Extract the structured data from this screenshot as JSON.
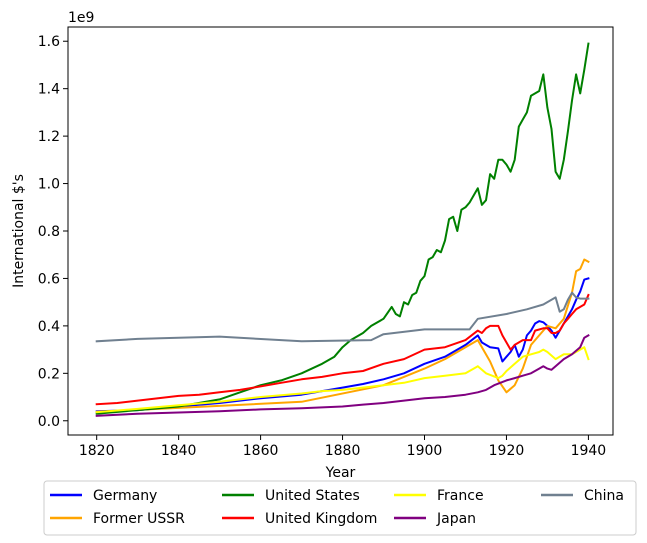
{
  "chart_data": {
    "type": "line",
    "xlabel": "Year",
    "ylabel": "International $'s",
    "offset_label": "1e9",
    "xlim": [
      1813,
      1946
    ],
    "ylim": [
      -0.06,
      1.66
    ],
    "scale_multiplier": 1000000000,
    "x_ticks": [
      1820,
      1840,
      1860,
      1880,
      1900,
      1920,
      1940
    ],
    "x_tick_labels": [
      "1820",
      "1840",
      "1860",
      "1880",
      "1900",
      "1920",
      "1940"
    ],
    "y_ticks": [
      0.0,
      0.2,
      0.4,
      0.6,
      0.8,
      1.0,
      1.2,
      1.4,
      1.6
    ],
    "y_tick_labels": [
      "0.0",
      "0.2",
      "0.4",
      "0.6",
      "0.8",
      "1.0",
      "1.2",
      "1.4",
      "1.6"
    ],
    "grid": false,
    "legend_position": "below-center",
    "series": [
      {
        "name": "Germany",
        "color": "#0000ff",
        "points": [
          [
            1820,
            0.04
          ],
          [
            1830,
            0.045
          ],
          [
            1840,
            0.06
          ],
          [
            1850,
            0.075
          ],
          [
            1860,
            0.095
          ],
          [
            1870,
            0.11
          ],
          [
            1875,
            0.125
          ],
          [
            1880,
            0.14
          ],
          [
            1885,
            0.155
          ],
          [
            1890,
            0.175
          ],
          [
            1895,
            0.2
          ],
          [
            1900,
            0.24
          ],
          [
            1905,
            0.27
          ],
          [
            1910,
            0.32
          ],
          [
            1913,
            0.36
          ],
          [
            1914,
            0.33
          ],
          [
            1916,
            0.31
          ],
          [
            1918,
            0.305
          ],
          [
            1919,
            0.25
          ],
          [
            1920,
            0.27
          ],
          [
            1921,
            0.29
          ],
          [
            1922,
            0.32
          ],
          [
            1923,
            0.27
          ],
          [
            1924,
            0.3
          ],
          [
            1925,
            0.36
          ],
          [
            1926,
            0.38
          ],
          [
            1927,
            0.41
          ],
          [
            1928,
            0.42
          ],
          [
            1929,
            0.415
          ],
          [
            1930,
            0.4
          ],
          [
            1931,
            0.38
          ],
          [
            1932,
            0.35
          ],
          [
            1933,
            0.38
          ],
          [
            1934,
            0.41
          ],
          [
            1935,
            0.44
          ],
          [
            1936,
            0.47
          ],
          [
            1937,
            0.51
          ],
          [
            1938,
            0.545
          ],
          [
            1939,
            0.595
          ],
          [
            1940,
            0.6
          ]
        ]
      },
      {
        "name": "Former USSR",
        "color": "#ffa500",
        "points": [
          [
            1820,
            0.038
          ],
          [
            1870,
            0.08
          ],
          [
            1890,
            0.15
          ],
          [
            1900,
            0.22
          ],
          [
            1905,
            0.26
          ],
          [
            1910,
            0.31
          ],
          [
            1913,
            0.34
          ],
          [
            1916,
            0.25
          ],
          [
            1918,
            0.17
          ],
          [
            1920,
            0.12
          ],
          [
            1922,
            0.15
          ],
          [
            1924,
            0.22
          ],
          [
            1926,
            0.32
          ],
          [
            1928,
            0.36
          ],
          [
            1930,
            0.4
          ],
          [
            1932,
            0.39
          ],
          [
            1934,
            0.43
          ],
          [
            1936,
            0.54
          ],
          [
            1937,
            0.63
          ],
          [
            1938,
            0.64
          ],
          [
            1939,
            0.68
          ],
          [
            1940,
            0.67
          ]
        ]
      },
      {
        "name": "United States",
        "color": "#008000",
        "points": [
          [
            1820,
            0.03
          ],
          [
            1830,
            0.045
          ],
          [
            1840,
            0.06
          ],
          [
            1850,
            0.09
          ],
          [
            1855,
            0.12
          ],
          [
            1860,
            0.15
          ],
          [
            1865,
            0.17
          ],
          [
            1870,
            0.2
          ],
          [
            1875,
            0.24
          ],
          [
            1878,
            0.27
          ],
          [
            1880,
            0.31
          ],
          [
            1882,
            0.34
          ],
          [
            1885,
            0.37
          ],
          [
            1887,
            0.4
          ],
          [
            1890,
            0.43
          ],
          [
            1892,
            0.48
          ],
          [
            1893,
            0.45
          ],
          [
            1894,
            0.44
          ],
          [
            1895,
            0.5
          ],
          [
            1896,
            0.49
          ],
          [
            1897,
            0.53
          ],
          [
            1898,
            0.54
          ],
          [
            1899,
            0.59
          ],
          [
            1900,
            0.61
          ],
          [
            1901,
            0.68
          ],
          [
            1902,
            0.69
          ],
          [
            1903,
            0.72
          ],
          [
            1904,
            0.71
          ],
          [
            1905,
            0.76
          ],
          [
            1906,
            0.85
          ],
          [
            1907,
            0.86
          ],
          [
            1908,
            0.8
          ],
          [
            1909,
            0.89
          ],
          [
            1910,
            0.9
          ],
          [
            1911,
            0.92
          ],
          [
            1912,
            0.95
          ],
          [
            1913,
            0.98
          ],
          [
            1914,
            0.91
          ],
          [
            1915,
            0.93
          ],
          [
            1916,
            1.04
          ],
          [
            1917,
            1.02
          ],
          [
            1918,
            1.1
          ],
          [
            1919,
            1.1
          ],
          [
            1920,
            1.08
          ],
          [
            1921,
            1.05
          ],
          [
            1922,
            1.1
          ],
          [
            1923,
            1.24
          ],
          [
            1924,
            1.27
          ],
          [
            1925,
            1.3
          ],
          [
            1926,
            1.37
          ],
          [
            1927,
            1.38
          ],
          [
            1928,
            1.39
          ],
          [
            1929,
            1.46
          ],
          [
            1930,
            1.32
          ],
          [
            1931,
            1.23
          ],
          [
            1932,
            1.05
          ],
          [
            1933,
            1.02
          ],
          [
            1934,
            1.1
          ],
          [
            1935,
            1.22
          ],
          [
            1936,
            1.35
          ],
          [
            1937,
            1.46
          ],
          [
            1938,
            1.38
          ],
          [
            1939,
            1.48
          ],
          [
            1940,
            1.59
          ]
        ]
      },
      {
        "name": "United Kingdom",
        "color": "#ff0000",
        "points": [
          [
            1820,
            0.07
          ],
          [
            1825,
            0.075
          ],
          [
            1830,
            0.085
          ],
          [
            1835,
            0.095
          ],
          [
            1840,
            0.105
          ],
          [
            1845,
            0.11
          ],
          [
            1850,
            0.12
          ],
          [
            1855,
            0.13
          ],
          [
            1860,
            0.145
          ],
          [
            1865,
            0.16
          ],
          [
            1870,
            0.175
          ],
          [
            1875,
            0.185
          ],
          [
            1880,
            0.2
          ],
          [
            1885,
            0.21
          ],
          [
            1890,
            0.24
          ],
          [
            1895,
            0.26
          ],
          [
            1900,
            0.3
          ],
          [
            1905,
            0.31
          ],
          [
            1910,
            0.34
          ],
          [
            1913,
            0.38
          ],
          [
            1914,
            0.37
          ],
          [
            1915,
            0.39
          ],
          [
            1916,
            0.4
          ],
          [
            1918,
            0.4
          ],
          [
            1919,
            0.36
          ],
          [
            1920,
            0.33
          ],
          [
            1921,
            0.3
          ],
          [
            1922,
            0.32
          ],
          [
            1924,
            0.34
          ],
          [
            1926,
            0.34
          ],
          [
            1927,
            0.38
          ],
          [
            1929,
            0.39
          ],
          [
            1930,
            0.39
          ],
          [
            1931,
            0.37
          ],
          [
            1932,
            0.37
          ],
          [
            1933,
            0.38
          ],
          [
            1934,
            0.41
          ],
          [
            1935,
            0.43
          ],
          [
            1936,
            0.45
          ],
          [
            1937,
            0.47
          ],
          [
            1938,
            0.48
          ],
          [
            1939,
            0.49
          ],
          [
            1940,
            0.53
          ]
        ]
      },
      {
        "name": "France",
        "color": "#ffff00",
        "points": [
          [
            1820,
            0.036
          ],
          [
            1830,
            0.05
          ],
          [
            1840,
            0.065
          ],
          [
            1850,
            0.08
          ],
          [
            1860,
            0.1
          ],
          [
            1870,
            0.115
          ],
          [
            1875,
            0.125
          ],
          [
            1880,
            0.13
          ],
          [
            1885,
            0.14
          ],
          [
            1890,
            0.15
          ],
          [
            1895,
            0.16
          ],
          [
            1900,
            0.18
          ],
          [
            1905,
            0.19
          ],
          [
            1910,
            0.2
          ],
          [
            1912,
            0.22
          ],
          [
            1913,
            0.23
          ],
          [
            1915,
            0.2
          ],
          [
            1918,
            0.18
          ],
          [
            1919,
            0.19
          ],
          [
            1920,
            0.21
          ],
          [
            1922,
            0.24
          ],
          [
            1924,
            0.27
          ],
          [
            1926,
            0.28
          ],
          [
            1928,
            0.29
          ],
          [
            1929,
            0.3
          ],
          [
            1930,
            0.29
          ],
          [
            1932,
            0.26
          ],
          [
            1934,
            0.28
          ],
          [
            1936,
            0.28
          ],
          [
            1938,
            0.3
          ],
          [
            1939,
            0.31
          ],
          [
            1940,
            0.26
          ]
        ]
      },
      {
        "name": "Japan",
        "color": "#800080",
        "points": [
          [
            1820,
            0.021
          ],
          [
            1830,
            0.03
          ],
          [
            1840,
            0.035
          ],
          [
            1850,
            0.04
          ],
          [
            1860,
            0.048
          ],
          [
            1870,
            0.053
          ],
          [
            1880,
            0.06
          ],
          [
            1885,
            0.068
          ],
          [
            1890,
            0.075
          ],
          [
            1895,
            0.085
          ],
          [
            1900,
            0.095
          ],
          [
            1905,
            0.1
          ],
          [
            1910,
            0.11
          ],
          [
            1913,
            0.12
          ],
          [
            1915,
            0.13
          ],
          [
            1917,
            0.15
          ],
          [
            1920,
            0.17
          ],
          [
            1922,
            0.18
          ],
          [
            1924,
            0.19
          ],
          [
            1926,
            0.2
          ],
          [
            1928,
            0.22
          ],
          [
            1929,
            0.23
          ],
          [
            1930,
            0.22
          ],
          [
            1931,
            0.215
          ],
          [
            1932,
            0.23
          ],
          [
            1934,
            0.26
          ],
          [
            1936,
            0.28
          ],
          [
            1938,
            0.31
          ],
          [
            1939,
            0.35
          ],
          [
            1940,
            0.36
          ]
        ]
      },
      {
        "name": "China",
        "color": "#708090",
        "points": [
          [
            1820,
            0.335
          ],
          [
            1830,
            0.345
          ],
          [
            1850,
            0.355
          ],
          [
            1870,
            0.335
          ],
          [
            1887,
            0.34
          ],
          [
            1890,
            0.365
          ],
          [
            1900,
            0.385
          ],
          [
            1911,
            0.385
          ],
          [
            1913,
            0.43
          ],
          [
            1920,
            0.45
          ],
          [
            1925,
            0.47
          ],
          [
            1929,
            0.49
          ],
          [
            1931,
            0.51
          ],
          [
            1932,
            0.52
          ],
          [
            1933,
            0.46
          ],
          [
            1934,
            0.47
          ],
          [
            1935,
            0.51
          ],
          [
            1936,
            0.54
          ],
          [
            1937,
            0.52
          ],
          [
            1938,
            0.515
          ],
          [
            1940,
            0.515
          ]
        ]
      }
    ]
  }
}
